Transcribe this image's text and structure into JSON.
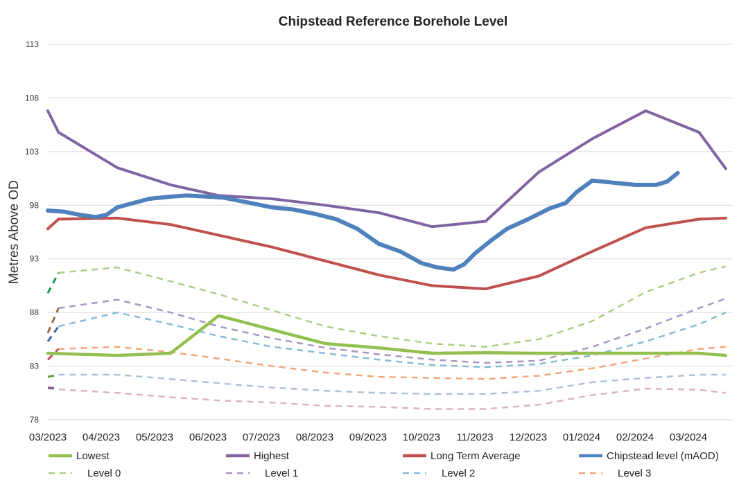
{
  "chart_data": {
    "type": "line",
    "title": "Chipstead Reference Borehole Level",
    "xlabel": "",
    "ylabel": "Metres Above OD",
    "ylim": [
      78,
      113
    ],
    "yticks": [
      78,
      83,
      88,
      93,
      98,
      103,
      108,
      113
    ],
    "x_range": [
      0,
      12.7
    ],
    "categories": [
      "03/2023",
      "04/2023",
      "05/2023",
      "06/2023",
      "07/2023",
      "08/2023",
      "09/2023",
      "10/2023",
      "11/2023",
      "12/2023",
      "01/2024",
      "02/2024",
      "03/2024"
    ],
    "legend_position": "bottom",
    "series": [
      {
        "name": "Lowest",
        "color": "#92c050",
        "style": "solid",
        "width": 4.5,
        "x": [
          0,
          1.3,
          2.3,
          3.2,
          4.2,
          5.2,
          6.2,
          7.2,
          8.2,
          9.2,
          10.2,
          11.2,
          12.2,
          12.7
        ],
        "y": [
          84.2,
          84.0,
          84.2,
          87.7,
          86.4,
          85.1,
          84.7,
          84.2,
          84.25,
          84.2,
          84.2,
          84.2,
          84.2,
          84.0
        ]
      },
      {
        "name": "Highest",
        "color": "#8064a2",
        "style": "solid",
        "width": 4,
        "x": [
          0,
          0.2,
          1.3,
          2.3,
          3.2,
          4.2,
          5.2,
          6.2,
          7.2,
          8.2,
          9.2,
          10.2,
          11.2,
          12.2,
          12.7
        ],
        "y": [
          106.8,
          104.8,
          101.5,
          99.9,
          98.9,
          98.6,
          98.0,
          97.3,
          96.0,
          96.5,
          101.1,
          104.2,
          106.8,
          104.8,
          101.4
        ]
      },
      {
        "name": "Long Term Average",
        "color": "#c0504d",
        "style": "solid",
        "width": 4,
        "x": [
          0,
          0.2,
          1.3,
          2.3,
          3.2,
          4.2,
          5.2,
          6.2,
          7.2,
          8.2,
          9.2,
          10.2,
          11.2,
          12.2,
          12.7
        ],
        "y": [
          95.8,
          96.7,
          96.8,
          96.2,
          95.2,
          94.1,
          92.8,
          91.5,
          90.5,
          90.2,
          91.4,
          93.7,
          95.9,
          96.7,
          96.8
        ]
      },
      {
        "name": "Chipstead level (mAOD)",
        "color": "#4f81bd",
        "style": "solid",
        "width": 6,
        "x": [
          0,
          0.3,
          0.6,
          0.9,
          1.1,
          1.3,
          1.6,
          1.9,
          2.3,
          2.6,
          3.0,
          3.3,
          3.6,
          3.9,
          4.2,
          4.6,
          5.0,
          5.4,
          5.8,
          6.2,
          6.6,
          7.0,
          7.3,
          7.6,
          7.8,
          8.0,
          8.3,
          8.6,
          9.0,
          9.4,
          9.7,
          9.9,
          10.2,
          10.4,
          10.6,
          11.0,
          11.4,
          11.6,
          11.8
        ],
        "y": [
          97.5,
          97.4,
          97.1,
          96.9,
          97.1,
          97.8,
          98.2,
          98.6,
          98.8,
          98.9,
          98.8,
          98.7,
          98.4,
          98.1,
          97.8,
          97.6,
          97.2,
          96.7,
          95.8,
          94.4,
          93.7,
          92.6,
          92.2,
          92.0,
          92.5,
          93.5,
          94.7,
          95.8,
          96.7,
          97.7,
          98.2,
          99.2,
          100.3,
          100.2,
          100.1,
          99.9,
          99.9,
          100.2,
          101.0
        ]
      },
      {
        "name": "Level 0",
        "color": "#a9cf80",
        "style": "dashed",
        "width": 2.5,
        "x": [
          0.2,
          1.3,
          2.3,
          3.2,
          4.2,
          5.2,
          6.2,
          7.2,
          8.2,
          9.2,
          10.2,
          11.2,
          12.2,
          12.7
        ],
        "y": [
          91.7,
          92.2,
          90.9,
          89.7,
          88.2,
          86.7,
          85.8,
          85.1,
          84.8,
          85.5,
          87.2,
          89.9,
          91.7,
          92.3
        ]
      },
      {
        "name": "Level 1",
        "color": "#a995c0",
        "style": "dashed",
        "width": 2.5,
        "x": [
          0.2,
          1.3,
          2.3,
          3.2,
          4.2,
          5.2,
          6.2,
          7.2,
          8.2,
          9.2,
          10.2,
          11.2,
          12.2,
          12.7
        ],
        "y": [
          88.4,
          89.2,
          88.0,
          86.7,
          85.6,
          84.7,
          84.1,
          83.6,
          83.3,
          83.5,
          84.8,
          86.5,
          88.4,
          89.3
        ]
      },
      {
        "name": "Level 2",
        "color": "#84bcd4",
        "style": "dashed",
        "width": 2.5,
        "x": [
          0.2,
          1.3,
          2.3,
          3.2,
          4.2,
          5.2,
          6.2,
          7.2,
          8.2,
          9.2,
          10.2,
          11.2,
          12.2,
          12.7
        ],
        "y": [
          86.7,
          88.0,
          86.9,
          85.8,
          84.8,
          84.2,
          83.6,
          83.1,
          82.9,
          83.2,
          84.0,
          85.3,
          86.9,
          88.0
        ]
      },
      {
        "name": "Level 3",
        "color": "#f2a67a",
        "style": "dashed",
        "width": 2.5,
        "x": [
          0.2,
          1.3,
          2.3,
          3.2,
          4.2,
          5.2,
          6.2,
          7.2,
          8.2,
          9.2,
          10.2,
          11.2,
          12.2,
          12.7
        ],
        "y": [
          84.6,
          84.8,
          84.3,
          83.7,
          83.0,
          82.4,
          82.0,
          81.9,
          81.8,
          82.1,
          82.8,
          83.7,
          84.6,
          84.8
        ]
      },
      {
        "name": "",
        "color": "#adc0da",
        "style": "dashed",
        "width": 2.5,
        "x": [
          0.2,
          1.3,
          2.3,
          3.2,
          4.2,
          5.2,
          6.2,
          7.2,
          8.2,
          9.2,
          10.2,
          11.2,
          12.2,
          12.7
        ],
        "y": [
          82.2,
          82.2,
          81.8,
          81.4,
          81.0,
          80.7,
          80.5,
          80.4,
          80.4,
          80.7,
          81.5,
          81.9,
          82.2,
          82.2
        ]
      },
      {
        "name": "",
        "color": "#dbb5b8",
        "style": "dashed",
        "width": 2.5,
        "x": [
          0,
          1.3,
          2.3,
          3.2,
          4.2,
          5.2,
          6.2,
          7.2,
          8.2,
          9.2,
          10.2,
          11.2,
          12.2,
          12.7
        ],
        "y": [
          80.9,
          80.5,
          80.1,
          79.8,
          79.6,
          79.3,
          79.2,
          79.0,
          79.0,
          79.4,
          80.3,
          80.9,
          80.8,
          80.5
        ]
      },
      {
        "name": "",
        "color": "#1a9a52",
        "style": "dashed",
        "width": 3,
        "x": [
          0,
          0.2
        ],
        "y": [
          89.8,
          91.7
        ]
      },
      {
        "name": "",
        "color": "#9c6a3a",
        "style": "dashed",
        "width": 3,
        "x": [
          0,
          0.2
        ],
        "y": [
          86.1,
          88.4
        ]
      },
      {
        "name": "",
        "color": "#3a6aa8",
        "style": "dashed",
        "width": 3,
        "x": [
          0,
          0.2
        ],
        "y": [
          85.3,
          86.7
        ]
      },
      {
        "name": "",
        "color": "#c0504d",
        "style": "dashed",
        "width": 3,
        "x": [
          0,
          0.2
        ],
        "y": [
          83.6,
          84.6
        ]
      },
      {
        "name": "",
        "color": "#6a9a3a",
        "style": "dashed",
        "width": 3,
        "x": [
          0,
          0.2
        ],
        "y": [
          82.0,
          82.2
        ]
      },
      {
        "name": "",
        "color": "#7a5a8a",
        "style": "dashed",
        "width": 3,
        "x": [
          0,
          0.2
        ],
        "y": [
          81.0,
          80.9
        ]
      }
    ],
    "legend": [
      {
        "label": "Lowest",
        "color": "#92c050",
        "style": "solid"
      },
      {
        "label": "Highest",
        "color": "#8064a2",
        "style": "solid"
      },
      {
        "label": "Long Term Average",
        "color": "#c0504d",
        "style": "solid"
      },
      {
        "label": "Chipstead level (mAOD)",
        "color": "#4f81bd",
        "style": "solid"
      },
      {
        "label": "Level 0",
        "color": "#a9cf80",
        "style": "dashed"
      },
      {
        "label": "Level 1",
        "color": "#a995c0",
        "style": "dashed"
      },
      {
        "label": "Level 2",
        "color": "#84bcd4",
        "style": "dashed"
      },
      {
        "label": "Level 3",
        "color": "#f2a67a",
        "style": "dashed"
      }
    ]
  }
}
